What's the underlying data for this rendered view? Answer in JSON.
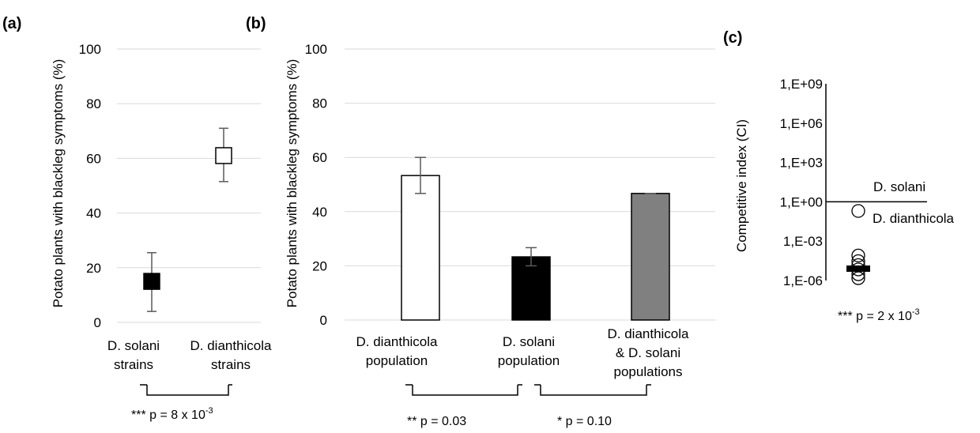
{
  "panels": {
    "a": "(a)",
    "b": "(b)",
    "c": "(c)"
  },
  "chart_data": [
    {
      "type": "scatter",
      "panel": "(a)",
      "ylabel": "Potato plants with blackleg symptoms (%)",
      "ylim": [
        0,
        100
      ],
      "yticks": [
        "0",
        "20",
        "40",
        "60",
        "80",
        "100"
      ],
      "grid": true,
      "categories": [
        {
          "line1": "D. solani",
          "line2": "strains"
        },
        {
          "line1": "D. dianthicola",
          "line2": "strains"
        }
      ],
      "points": [
        {
          "value": 15,
          "err_low": 4,
          "err_high": 25.5,
          "fill": "#000000"
        },
        {
          "value": 61,
          "err_low": 51.5,
          "err_high": 71,
          "fill": "#ffffff"
        }
      ],
      "significance": [
        {
          "pre": "*** p = 8 x 10",
          "sup": "-3"
        }
      ]
    },
    {
      "type": "bar",
      "panel": "(b)",
      "ylabel": "Potato plants with blackleg symptoms (%)",
      "ylim": [
        0,
        100
      ],
      "yticks": [
        "0",
        "20",
        "40",
        "60",
        "80",
        "100"
      ],
      "grid": true,
      "categories": [
        {
          "line1": "D. dianthicola",
          "line2": "population",
          "line3": ""
        },
        {
          "line1": "D. solani",
          "line2": "population",
          "line3": ""
        },
        {
          "line1": "D. dianthicola",
          "line2": "& D. solani",
          "line3": "populations"
        }
      ],
      "values": [
        53.3,
        23.3,
        46.7
      ],
      "errors_low": [
        46.7,
        20,
        46.7
      ],
      "errors_high": [
        60,
        26.7,
        46.7
      ],
      "colors": [
        "#ffffff",
        "#000000",
        "#808080"
      ],
      "significance": [
        {
          "pre": "** p = 0.03",
          "sup": ""
        },
        {
          "pre": "* p = 0.10",
          "sup": ""
        }
      ]
    },
    {
      "type": "scatter",
      "panel": "(c)",
      "ylabel": "Competitive index (CI)",
      "scale": "log",
      "ylim": [
        1e-06,
        1000000000.0
      ],
      "yticks": [
        "1,E-06",
        "1,E-03",
        "1,E+00",
        "1,E+03",
        "1,E+06",
        "1,E+09"
      ],
      "reference_line": 1,
      "annotations": [
        "D. solani",
        "D. dianthicola"
      ],
      "points": [
        0.2,
        8e-05,
        3e-05,
        1.5e-05,
        7e-06,
        3e-06,
        1.5e-06
      ],
      "median": 8e-06,
      "significance": [
        {
          "pre": "*** p = 2 x 10",
          "sup": "-3"
        }
      ]
    }
  ]
}
